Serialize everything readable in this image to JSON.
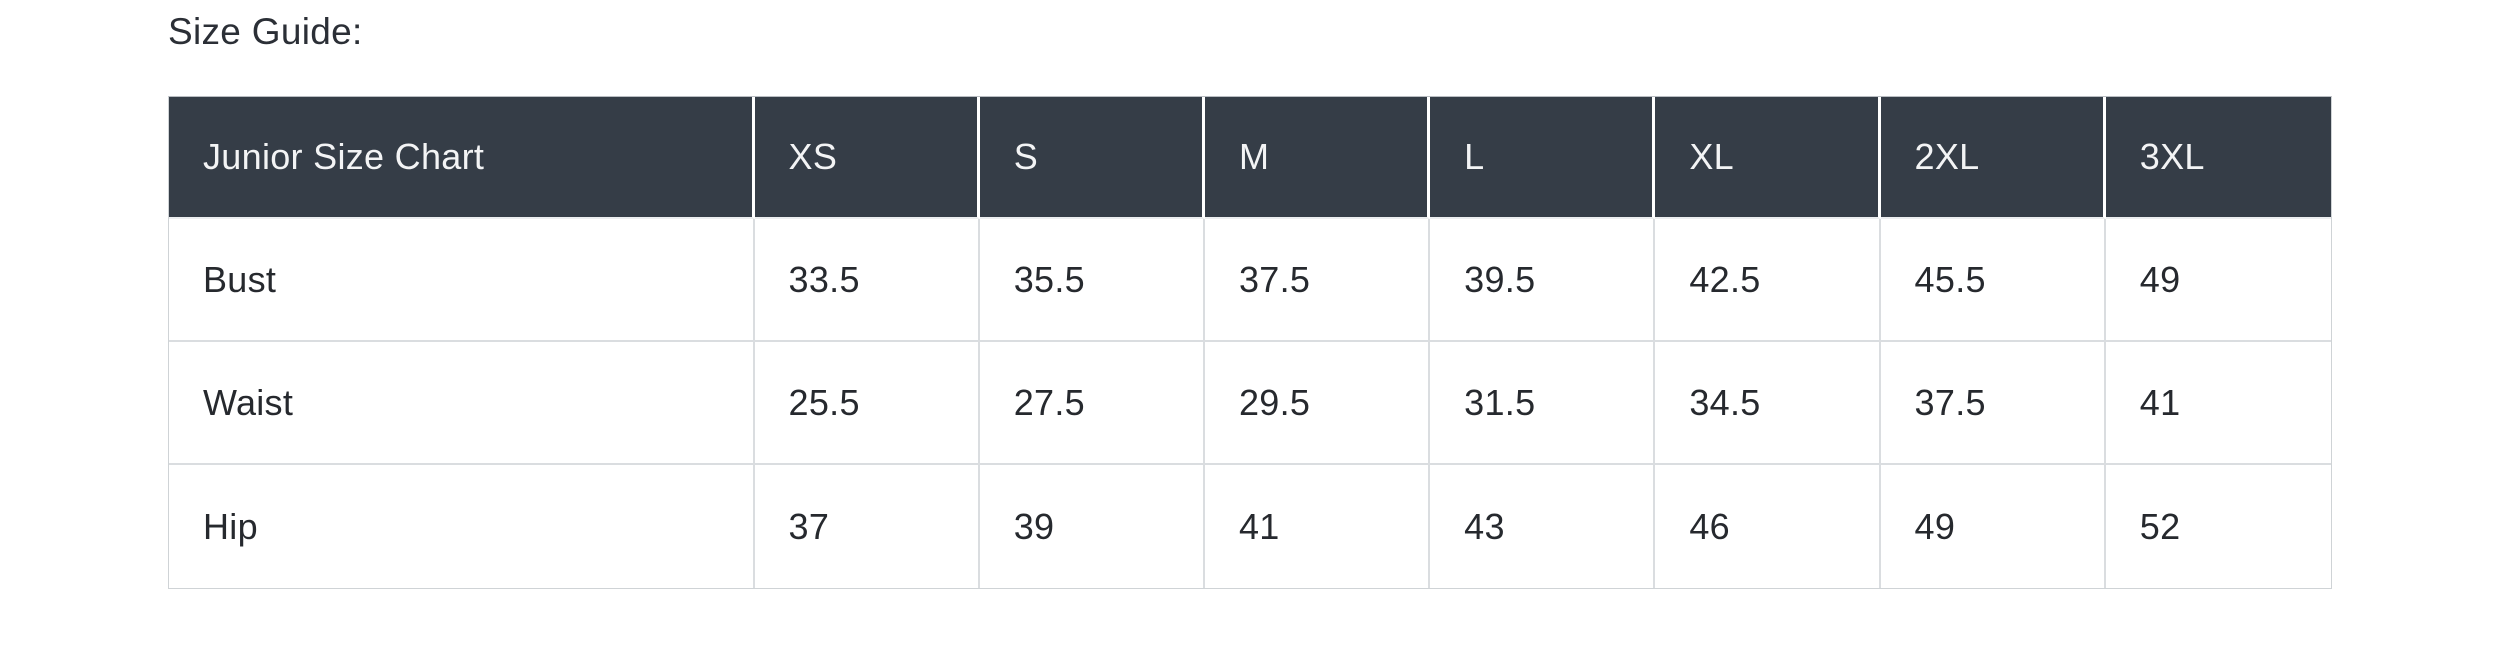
{
  "page": {
    "background": "#ffffff"
  },
  "title": "Size Guide:",
  "size_chart": {
    "header": [
      "Junior Size Chart",
      "XS",
      "S",
      "M",
      "L",
      "XL",
      "2XL",
      "3XL"
    ],
    "rows": [
      {
        "label": "Bust",
        "values": [
          "33.5",
          "35.5",
          "37.5",
          "39.5",
          "42.5",
          "45.5",
          "49"
        ]
      },
      {
        "label": "Waist",
        "values": [
          "25.5",
          "27.5",
          "29.5",
          "31.5",
          "34.5",
          "37.5",
          "41"
        ]
      },
      {
        "label": "Hip",
        "values": [
          "37",
          "39",
          "41",
          "43",
          "46",
          "49",
          "52"
        ]
      }
    ],
    "colors": {
      "header_bg": "#353d47",
      "header_text": "#f3f4f5",
      "body_text": "#26292e",
      "row_border": "#dadde0",
      "outer_border": "#cfd3d6",
      "header_separator": "#ffffff"
    }
  }
}
